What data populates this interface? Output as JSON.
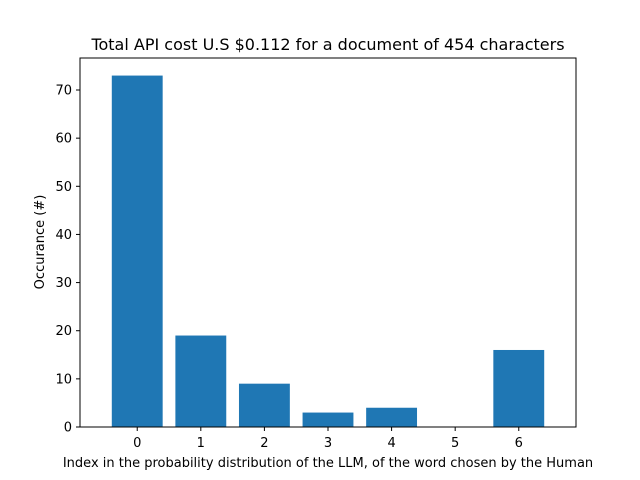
{
  "chart_data": {
    "type": "bar",
    "title": "Total API cost U.S $0.112 for a document of 454 characters",
    "xlabel": "Index in the probability distribution of the LLM, of the word chosen by the Human",
    "ylabel": "Occurance (#)",
    "categories": [
      "0",
      "1",
      "2",
      "3",
      "4",
      "5",
      "6"
    ],
    "values": [
      73,
      19,
      9,
      3,
      4,
      0,
      16
    ],
    "xlim": [
      -0.9,
      6.9
    ],
    "ylim": [
      0,
      76.65
    ],
    "yticks": [
      0,
      10,
      20,
      30,
      40,
      50,
      60,
      70
    ],
    "bar_color": "#1f77b4",
    "grid": false,
    "legend": "none"
  }
}
